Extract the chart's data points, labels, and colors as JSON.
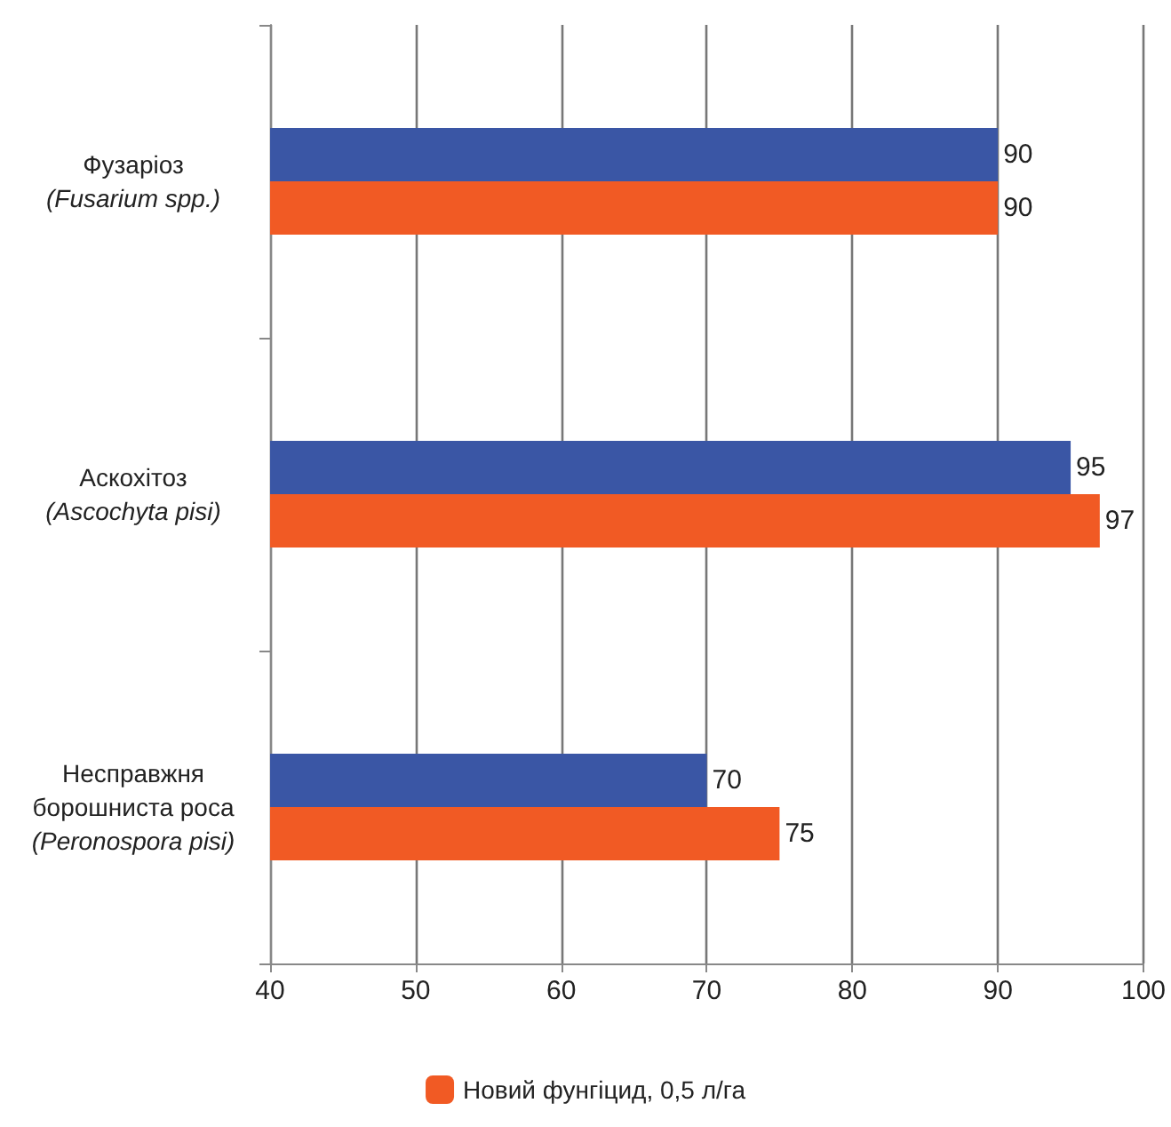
{
  "chart_data": {
    "type": "bar",
    "orientation": "horizontal",
    "categories": [
      "Фузаріоз\n(Fusarium spp.)",
      "Аскохітоз\n(Ascochyta pisi)",
      "Несправжня\nборошниста роса\n(Peronospora pisi)"
    ],
    "series": [
      {
        "color": "#3a56a5",
        "values": [
          90,
          95,
          70
        ]
      },
      {
        "name": "Новий фунгіцид, 0,5 л/га",
        "color": "#f15a24",
        "values": [
          90,
          97,
          75
        ]
      }
    ],
    "xlim": [
      40,
      100
    ],
    "xticks": [
      40,
      50,
      60,
      70,
      80,
      90,
      100
    ],
    "grid": "x",
    "legend": "bottom",
    "data_labels": true
  }
}
